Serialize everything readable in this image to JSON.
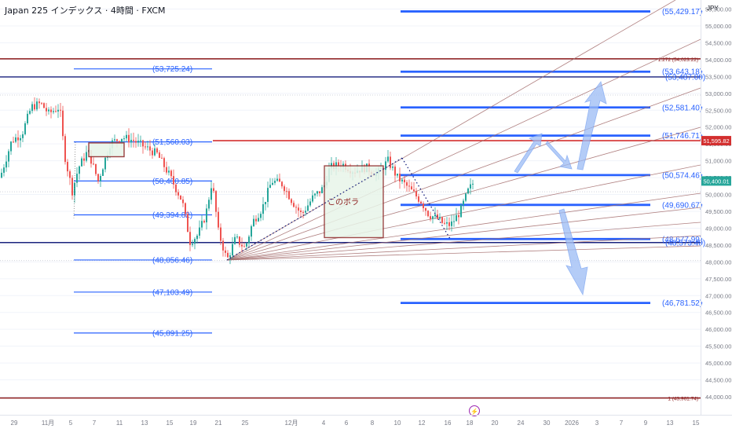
{
  "header": {
    "title": "Japan 225 インデックス · 4時間 · FXCM",
    "currency": "JPY"
  },
  "colors": {
    "blue_line": "#2962ff",
    "red_line": "#b71c1c",
    "up": "#26a69a",
    "down": "#ef5350",
    "zone_fill": "#e8f5e9",
    "zone_border": "#8e2b2b",
    "fan": "#a36b6b",
    "arrow": "#6f9cf0"
  },
  "chart_data": {
    "type": "candlestick",
    "symbol": "Japan 225",
    "timeframe": "4時間",
    "ylim": [
      43400,
      56000
    ],
    "y_ticks": [
      44000,
      44500,
      45000,
      45500,
      46000,
      46500,
      47000,
      47500,
      48000,
      48500,
      49000,
      49500,
      50000,
      50500,
      51000,
      51500,
      52000,
      52500,
      53000,
      53500,
      54000,
      54500,
      55000,
      55500
    ],
    "x_ticks": [
      "29",
      "11月",
      "5",
      "7",
      "11",
      "13",
      "15",
      "19",
      "21",
      "25",
      "12月",
      "4",
      "6",
      "8",
      "10",
      "12",
      "16",
      "18",
      "20",
      "24",
      "30",
      "2026",
      "3",
      "7",
      "9",
      "13",
      "15"
    ],
    "price_marker": {
      "value": "50,400.01",
      "color": "#26a69a"
    },
    "red_marker": {
      "value": "51,595.82",
      "color": "#d32f2f"
    },
    "horizontal_levels_left": [
      {
        "label": "(53,725.24)",
        "value": 53725.24
      },
      {
        "label": "(51,560.03)",
        "value": 51560.03
      },
      {
        "label": "(50,400.85)",
        "value": 50400.85
      },
      {
        "label": "(49,394.82)",
        "value": 49394.82
      },
      {
        "label": "(48,056.46)",
        "value": 48056.46
      },
      {
        "label": "(47,103.49)",
        "value": 47103.49
      },
      {
        "label": "(45,891.25)",
        "value": 45891.25
      }
    ],
    "horizontal_levels_right": [
      {
        "label": "(55,429.17)",
        "value": 55429.17
      },
      {
        "label": "(53,643.18)",
        "value": 53643.18
      },
      {
        "label": "(53,487.00)",
        "value": 53487.0
      },
      {
        "label": "(52,581.40)",
        "value": 52581.4
      },
      {
        "label": "(51,746.71)",
        "value": 51746.71
      },
      {
        "label": "(50,574.46)",
        "value": 50574.46
      },
      {
        "label": "(49,690.67)",
        "value": 49690.67
      },
      {
        "label": "(48,677.99)",
        "value": 48677.99
      },
      {
        "label": "(48,573.40)",
        "value": 48573.4
      },
      {
        "label": "(46,781.52)",
        "value": 46781.52
      }
    ],
    "fib_lines": [
      {
        "label": "1.272 (54,023.22)",
        "value": 54023.22
      },
      {
        "label": "1 (43,961.74)",
        "value": 43961.74
      }
    ],
    "red_resistance": 51595.82,
    "annotations": [
      {
        "text": "このボラ"
      }
    ]
  }
}
